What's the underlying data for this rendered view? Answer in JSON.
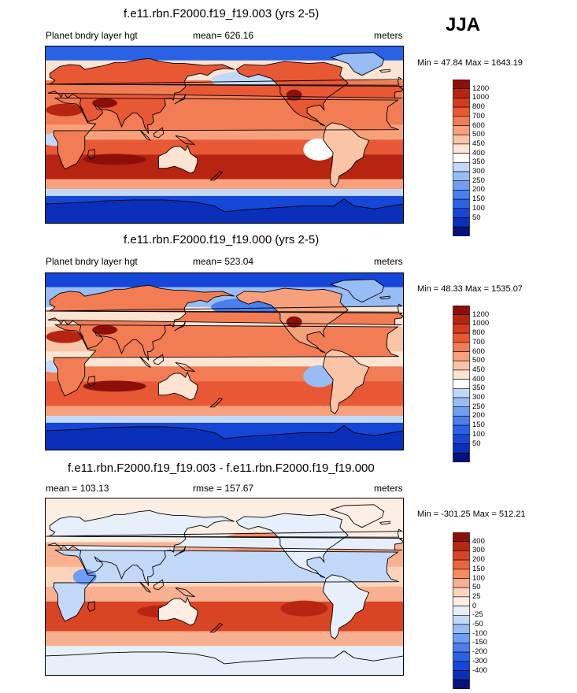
{
  "season": "JJA",
  "colors": {
    "main_scale": [
      "#08107a",
      "#0a2fb8",
      "#1446d8",
      "#2a62e6",
      "#4a7fee",
      "#6f9ef2",
      "#98bdf5",
      "#c2d8f8",
      "#ffffff",
      "#fde3d2",
      "#fac4a6",
      "#f7a17c",
      "#f27c54",
      "#e85834",
      "#d63a1e",
      "#b72412",
      "#8c1009"
    ],
    "diff_scale": [
      "#08107a",
      "#0a2fb8",
      "#1446d8",
      "#2a62e6",
      "#4a7fee",
      "#6f9ef2",
      "#98bdf5",
      "#c2d8f8",
      "#e6effa",
      "#fdeee4",
      "#fbd4bb",
      "#f8b090",
      "#f38b63",
      "#ea653e",
      "#d84424",
      "#b82612",
      "#8c1009"
    ]
  },
  "chart_data": [
    {
      "type": "heatmap",
      "title": "f.e11.rbn.F2000.f19_f19.003 (yrs 2-5)",
      "variable": "Planet bndry layer hgt",
      "summary": "mean= 626.16",
      "units": "meters",
      "minmax": "Min =  47.84 Max = 1643.19",
      "levels": [
        "50",
        "100",
        "150",
        "200",
        "250",
        "300",
        "350",
        "400",
        "450",
        "500",
        "600",
        "700",
        "800",
        "1000",
        "1200"
      ],
      "field": "boundary-layer-height-model-003"
    },
    {
      "type": "heatmap",
      "title": "f.e11.rbn.F2000.f19_f19.000 (yrs 2-5)",
      "variable": "Planet bndry layer hgt",
      "summary": "mean= 523.04",
      "units": "meters",
      "minmax": "Min =  48.33 Max = 1535.07",
      "levels": [
        "50",
        "100",
        "150",
        "200",
        "250",
        "300",
        "350",
        "400",
        "450",
        "500",
        "600",
        "700",
        "800",
        "1000",
        "1200"
      ],
      "field": "boundary-layer-height-model-000"
    },
    {
      "type": "heatmap",
      "title": "f.e11.rbn.F2000.f19_f19.003 - f.e11.rbn.F2000.f19_f19.000",
      "mean": "mean = 103.13",
      "rmse": "rmse = 157.67",
      "units": "meters",
      "minmax": "Min = -301.25 Max = 512.21",
      "levels": [
        "-400",
        "-300",
        "-200",
        "-150",
        "-100",
        "-50",
        "-25",
        "0",
        "25",
        "50",
        "100",
        "150",
        "200",
        "300",
        "400"
      ],
      "field": "difference"
    }
  ]
}
